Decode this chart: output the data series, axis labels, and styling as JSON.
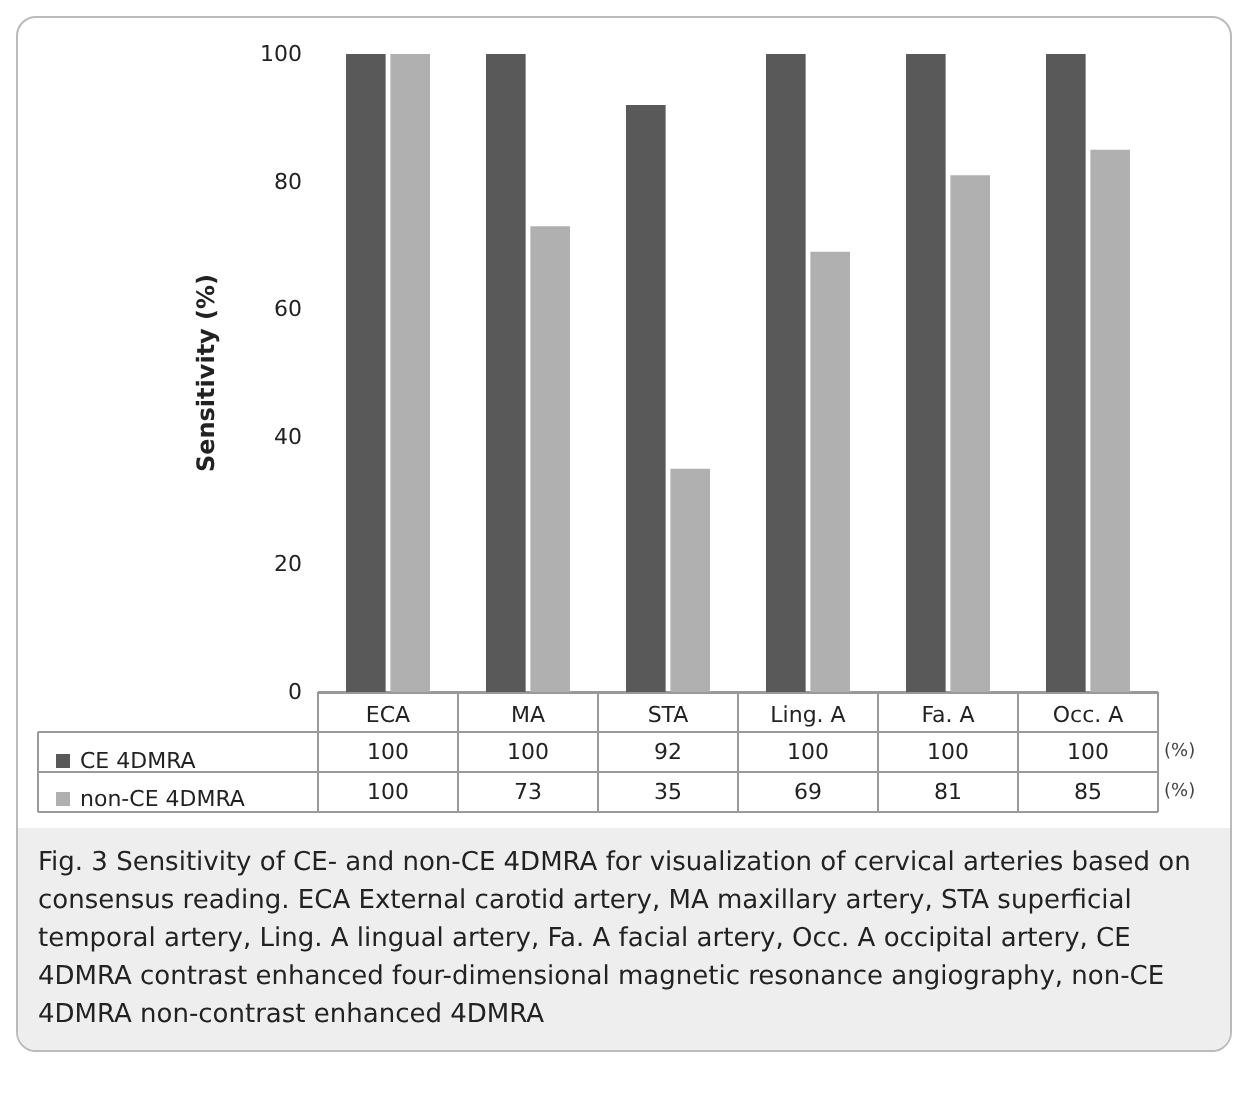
{
  "chart_data": {
    "type": "bar",
    "ylabel": "Sensitivity (%)",
    "categories": [
      "ECA",
      "MA",
      "STA",
      "Ling. A",
      "Fa. A",
      "Occ. A"
    ],
    "series": [
      {
        "name": "CE 4DMRA",
        "color": "#595959",
        "values": [
          100,
          100,
          92,
          100,
          100,
          100
        ]
      },
      {
        "name": "non-CE 4DMRA",
        "color": "#b0b0b0",
        "values": [
          100,
          73,
          35,
          69,
          81,
          85
        ]
      }
    ],
    "ylim": [
      0,
      100
    ],
    "yticks": [
      0,
      20,
      40,
      60,
      80,
      100
    ],
    "grid": false,
    "legend": "bottom left",
    "data_labels": true,
    "annotations": [
      "(%)",
      "Fig. 3 Sensitivity of CE- and non-CE 4DMRA for visualization of cervical arteries based on consensus reading. ECA External carotid artery, MA maxillary artery, STA superficial temporal artery, Ling. A lingual artery, Fa. A facial artery, Occ. A occipital artery, CE 4DMRA contrast enhanced four-dimensional magnetic resonance angiography, non-CE 4DMRA non-contrast enhanced 4DMRA"
    ]
  }
}
